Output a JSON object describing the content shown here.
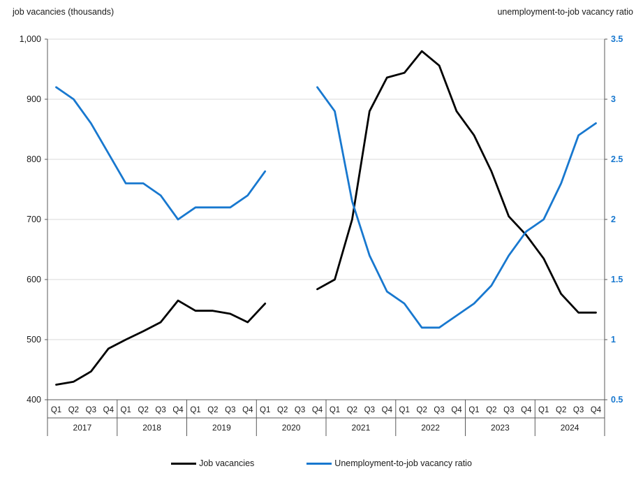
{
  "chart_data": {
    "type": "line",
    "title_left": "job vacancies (thousands)",
    "title_right": "unemployment-to-job vacancy ratio",
    "years": [
      "2017",
      "2018",
      "2019",
      "2020",
      "2021",
      "2022",
      "2023",
      "2024"
    ],
    "quarters": [
      "Q1",
      "Q2",
      "Q3",
      "Q4"
    ],
    "grid_color": "#d9d9d9",
    "axis_color": "#595959",
    "text_color": "#1a1a1a",
    "left_axis": {
      "min": 400,
      "max": 1000,
      "tick_values": [
        1000,
        900,
        800,
        700,
        600,
        500,
        400
      ],
      "ticks": [
        "1,000",
        "900",
        "800",
        "700",
        "600",
        "500",
        "400"
      ],
      "label_color": "#1a1a1a"
    },
    "right_axis": {
      "min": 0.5,
      "max": 3.5,
      "tick_values": [
        3.5,
        3,
        2.5,
        2,
        1.5,
        1,
        0.5
      ],
      "ticks": [
        "3.5",
        "3",
        "2.5",
        "2",
        "1.5",
        "1",
        "0.5"
      ],
      "label_color": "#1878cf"
    },
    "series": [
      {
        "name": "Job vacancies",
        "axis": "left",
        "color": "#000000",
        "values": [
          425,
          430,
          447,
          485,
          500,
          514,
          529,
          565,
          548,
          548,
          543,
          529,
          560,
          null,
          null,
          584,
          600,
          700,
          880,
          936,
          944,
          980,
          956,
          880,
          840,
          780,
          705,
          674,
          635,
          576,
          545,
          545
        ]
      },
      {
        "name": "Unemployment-to-job vacancy ratio",
        "axis": "right",
        "color": "#1878cf",
        "values": [
          3.1,
          3.0,
          2.8,
          2.55,
          2.3,
          2.3,
          2.2,
          2.0,
          2.1,
          2.1,
          2.1,
          2.2,
          2.4,
          null,
          null,
          3.1,
          2.9,
          2.15,
          1.7,
          1.4,
          1.3,
          1.1,
          1.1,
          1.2,
          1.3,
          1.45,
          1.7,
          1.9,
          2.0,
          2.3,
          2.7,
          2.8
        ]
      }
    ],
    "legend": [
      {
        "label": "Job vacancies",
        "color": "#000000"
      },
      {
        "label": "Unemployment-to-job vacancy ratio",
        "color": "#1878cf"
      }
    ]
  }
}
